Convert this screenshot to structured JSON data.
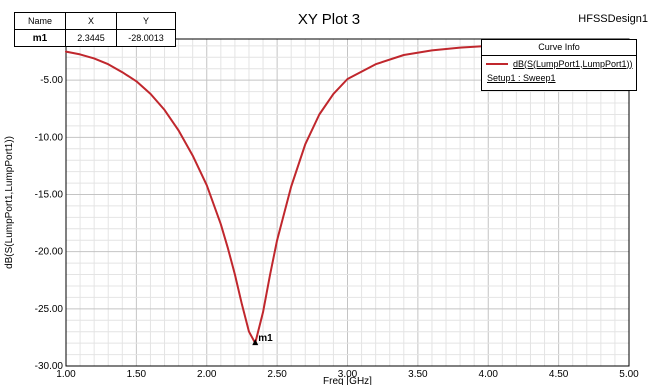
{
  "header": {
    "title": "XY Plot 3",
    "design": "HFSSDesign1"
  },
  "marker_table": {
    "headers": [
      "Name",
      "X",
      "Y"
    ],
    "row": {
      "name": "m1",
      "x": "2.3445",
      "y": "-28.0013"
    }
  },
  "legend": {
    "title": "Curve Info",
    "trace": "dB(S(LumpPort1,LumpPort1))",
    "setup": "Setup1 : Sweep1",
    "color": "#c0272d"
  },
  "chart_data": {
    "type": "line",
    "title": "XY Plot 3",
    "xlabel": "Freq [GHz]",
    "ylabel": "dB(S(LumpPort1,LumpPort1))",
    "xlim": [
      1.0,
      5.0
    ],
    "ylim": [
      -30.0,
      -1.4
    ],
    "x_ticks": [
      "1.00",
      "1.50",
      "2.00",
      "2.50",
      "3.00",
      "3.50",
      "4.00",
      "4.50",
      "5.00"
    ],
    "y_ticks": [
      "-5.00",
      "-10.00",
      "-15.00",
      "-20.00",
      "-25.00",
      "-30.00"
    ],
    "grid": true,
    "legend_position": "top-right",
    "series": [
      {
        "name": "dB(S(LumpPort1,LumpPort1))",
        "color": "#c0272d",
        "x": [
          1.0,
          1.1,
          1.2,
          1.3,
          1.4,
          1.5,
          1.6,
          1.7,
          1.8,
          1.9,
          2.0,
          2.1,
          2.15,
          2.2,
          2.25,
          2.3,
          2.3445,
          2.4,
          2.45,
          2.5,
          2.6,
          2.7,
          2.8,
          2.9,
          3.0,
          3.2,
          3.4,
          3.6,
          3.8,
          4.0,
          4.2,
          4.4,
          4.6,
          4.8,
          5.0
        ],
        "y": [
          -2.5,
          -2.75,
          -3.1,
          -3.6,
          -4.3,
          -5.1,
          -6.2,
          -7.6,
          -9.4,
          -11.6,
          -14.2,
          -17.6,
          -19.7,
          -22.0,
          -24.6,
          -27.0,
          -28.0,
          -25.3,
          -22.0,
          -19.0,
          -14.3,
          -10.6,
          -8.0,
          -6.2,
          -4.9,
          -3.6,
          -2.8,
          -2.4,
          -2.15,
          -2.0,
          -1.9,
          -1.82,
          -1.76,
          -1.72,
          -1.7
        ]
      }
    ],
    "markers": [
      {
        "name": "m1",
        "x": 2.3445,
        "y": -28.0013
      }
    ]
  }
}
